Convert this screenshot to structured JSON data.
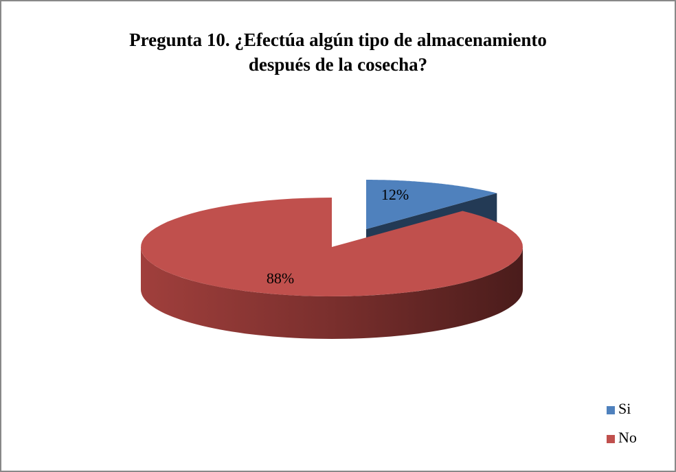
{
  "chart_data": {
    "type": "pie",
    "title": "Pregunta 10. ¿Efectúa algún tipo de almacenamiento después de la cosecha?",
    "categories": [
      "Si",
      "No"
    ],
    "values": [
      12,
      88
    ],
    "value_labels": [
      "12%",
      "88%"
    ],
    "colors": [
      "#4f81bd",
      "#c0504d"
    ],
    "legend": "right"
  }
}
